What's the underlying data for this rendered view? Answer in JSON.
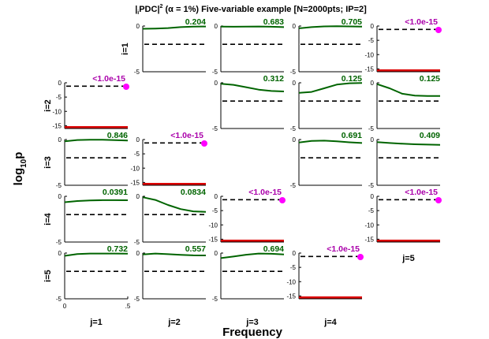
{
  "title": "|iPDC|2 (α = 1%) Five-variable example [N=2000pts; IP=2]",
  "title_parts": {
    "pre": "|",
    "sub": "i",
    "mid": "PDC|",
    "sup": "2",
    "post": " (α = 1%) Five-variable example [N=2000pts; IP=2]"
  },
  "xlabel": "Frequency",
  "ylabel": {
    "base": "log",
    "sub": "10",
    "tail": "p"
  },
  "colors": {
    "curve": "#006400",
    "pvalue_green": "#006400",
    "pvalue_magenta": "#aa00aa",
    "marker": "#ff00ff",
    "red_line": "#dd0000",
    "threshold": "#000000"
  },
  "chart_data": {
    "type": "line",
    "n_vars": 5,
    "xlim": [
      0,
      0.5
    ],
    "x_ticks": [
      "0",
      ".5"
    ],
    "ylim_default": [
      -5,
      0
    ],
    "y_ticks_default": [
      "0",
      "-5"
    ],
    "ylim_extended": [
      -16,
      0
    ],
    "y_ticks_extended": [
      "0",
      "-5",
      "-10",
      "-15"
    ],
    "threshold": -2,
    "col_labels": [
      "j=1",
      "j=2",
      "j=3",
      "j=4",
      "j=5"
    ],
    "row_labels": [
      "i=1",
      "i=2",
      "i=3",
      "i=4",
      "i=5"
    ],
    "red_line_value": -15.5,
    "panels": [
      {
        "i": 1,
        "j": 2,
        "pvalue": "0.204",
        "color": "green",
        "y": [
          -0.3,
          -0.28,
          -0.22,
          -0.12,
          -0.06,
          -0.05
        ]
      },
      {
        "i": 1,
        "j": 3,
        "pvalue": "0.683",
        "color": "green",
        "y": [
          -0.07,
          -0.08,
          -0.06,
          -0.05,
          -0.08,
          -0.12
        ]
      },
      {
        "i": 1,
        "j": 4,
        "pvalue": "0.705",
        "color": "green",
        "y": [
          -0.25,
          -0.12,
          -0.04,
          -0.02,
          -0.04,
          -0.06
        ]
      },
      {
        "i": 1,
        "j": 5,
        "pvalue": "<1.0e-15",
        "color": "magenta",
        "extended": true,
        "threshold": -1.2,
        "red_line": true,
        "marker": true
      },
      {
        "i": 2,
        "j": 1,
        "pvalue": "<1.0e-15",
        "color": "magenta",
        "extended": true,
        "threshold": -1.2,
        "red_line": true,
        "marker": true
      },
      {
        "i": 2,
        "j": 3,
        "pvalue": "0.312",
        "color": "green",
        "y": [
          -0.1,
          -0.22,
          -0.48,
          -0.75,
          -0.9,
          -0.95
        ]
      },
      {
        "i": 2,
        "j": 4,
        "pvalue": "0.125",
        "color": "green",
        "y": [
          -1.1,
          -1.0,
          -0.6,
          -0.2,
          -0.05,
          -0.02
        ]
      },
      {
        "i": 2,
        "j": 5,
        "pvalue": "0.125",
        "color": "green",
        "y": [
          -0.15,
          -0.6,
          -1.2,
          -1.4,
          -1.45,
          -1.45
        ]
      },
      {
        "i": 3,
        "j": 1,
        "pvalue": "0.846",
        "color": "green",
        "y": [
          -0.2,
          -0.05,
          -0.02,
          -0.03,
          -0.06,
          -0.1
        ]
      },
      {
        "i": 3,
        "j": 2,
        "pvalue": "<1.0e-15",
        "color": "magenta",
        "extended": true,
        "threshold": -1.2,
        "red_line": true,
        "marker": true
      },
      {
        "i": 3,
        "j": 4,
        "pvalue": "0.691",
        "color": "green",
        "y": [
          -0.32,
          -0.15,
          -0.12,
          -0.2,
          -0.3,
          -0.38
        ]
      },
      {
        "i": 3,
        "j": 5,
        "pvalue": "0.409",
        "color": "green",
        "y": [
          -0.28,
          -0.38,
          -0.46,
          -0.52,
          -0.55,
          -0.58
        ]
      },
      {
        "i": 4,
        "j": 1,
        "pvalue": "0.0391",
        "color": "green",
        "y": [
          -0.65,
          -0.52,
          -0.45,
          -0.42,
          -0.42,
          -0.43
        ]
      },
      {
        "i": 4,
        "j": 2,
        "pvalue": "0.0834",
        "color": "green",
        "y": [
          -0.1,
          -0.4,
          -0.95,
          -1.4,
          -1.65,
          -1.7
        ]
      },
      {
        "i": 4,
        "j": 3,
        "pvalue": "<1.0e-15",
        "color": "magenta",
        "extended": true,
        "threshold": -1.2,
        "red_line": true,
        "marker": true
      },
      {
        "i": 4,
        "j": 5,
        "pvalue": "<1.0e-15",
        "color": "magenta",
        "extended": true,
        "threshold": -1.2,
        "red_line": true,
        "marker": true
      },
      {
        "i": 5,
        "j": 1,
        "pvalue": "0.732",
        "color": "green",
        "y": [
          -0.3,
          -0.1,
          -0.05,
          -0.05,
          -0.05,
          -0.06
        ]
      },
      {
        "i": 5,
        "j": 2,
        "pvalue": "0.557",
        "color": "green",
        "y": [
          -0.15,
          -0.05,
          -0.12,
          -0.2,
          -0.25,
          -0.26
        ]
      },
      {
        "i": 5,
        "j": 3,
        "pvalue": "0.694",
        "color": "green",
        "y": [
          -0.55,
          -0.38,
          -0.18,
          -0.05,
          -0.08,
          -0.15
        ]
      },
      {
        "i": 5,
        "j": 4,
        "pvalue": "<1.0e-15",
        "color": "magenta",
        "extended": true,
        "threshold": -1.2,
        "red_line": true,
        "marker": true
      }
    ]
  }
}
